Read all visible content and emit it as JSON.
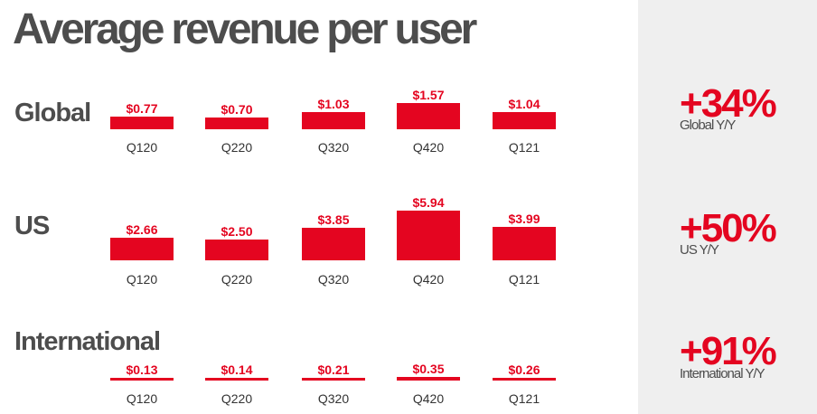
{
  "title": "Average revenue per user",
  "chart_data": [
    {
      "type": "bar",
      "title": "Global",
      "categories": [
        "Q120",
        "Q220",
        "Q320",
        "Q420",
        "Q121"
      ],
      "values": [
        0.77,
        0.7,
        1.03,
        1.57,
        1.04
      ],
      "labels": [
        "$0.77",
        "$0.70",
        "$1.03",
        "$1.57",
        "$1.04"
      ],
      "stat": "+34%",
      "stat_label": "Global Y/Y"
    },
    {
      "type": "bar",
      "title": "US",
      "categories": [
        "Q120",
        "Q220",
        "Q320",
        "Q420",
        "Q121"
      ],
      "values": [
        2.66,
        2.5,
        3.85,
        5.94,
        3.99
      ],
      "labels": [
        "$2.66",
        "$2.50",
        "$3.85",
        "$5.94",
        "$3.99"
      ],
      "stat": "+50%",
      "stat_label": "US Y/Y"
    },
    {
      "type": "bar",
      "title": "International",
      "categories": [
        "Q120",
        "Q220",
        "Q320",
        "Q420",
        "Q121"
      ],
      "values": [
        0.13,
        0.14,
        0.21,
        0.35,
        0.26
      ],
      "labels": [
        "$0.13",
        "$0.14",
        "$0.21",
        "$0.35",
        "$0.26"
      ],
      "stat": "+91%",
      "stat_label": "International Y/Y"
    }
  ],
  "colors": {
    "bar": "#e40520",
    "title_text": "#4d4d4d",
    "panel_background": "#efefef"
  }
}
